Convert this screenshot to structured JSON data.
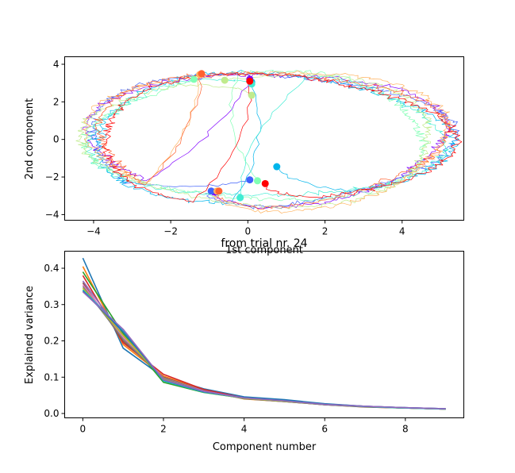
{
  "chart_data": [
    {
      "type": "line",
      "xlabel": "1st component",
      "ylabel": "2nd component",
      "xlim": [
        -4.75,
        5.6
      ],
      "ylim": [
        -4.3,
        4.4
      ],
      "xticks": [
        -4,
        -2,
        0,
        2,
        4
      ],
      "yticks": [
        -4,
        -2,
        0,
        2,
        4
      ],
      "grid": false,
      "description_of_traces": "noisy closed loops, one per trial",
      "series": [
        {
          "color": "#8000ff",
          "loop": {
            "cx": 0.5,
            "cy": 0.1,
            "rx": 4.6,
            "ry": 3.5
          },
          "start": [
            -0.85,
            -2.8
          ],
          "end": [
            0.05,
            3.2
          ]
        },
        {
          "color": "#4062fa",
          "loop": {
            "cx": 0.45,
            "cy": 0.05,
            "rx": 4.7,
            "ry": 3.5
          },
          "start": [
            -0.95,
            -2.75
          ],
          "end": [
            0.05,
            -2.15
          ]
        },
        {
          "color": "#00b5eb",
          "loop": {
            "cx": 0.5,
            "cy": 0.0,
            "rx": 4.6,
            "ry": 3.45
          },
          "start": [
            0.75,
            -1.45
          ],
          "end": [
            0.1,
            3.05
          ]
        },
        {
          "color": "#40ecd4",
          "loop": {
            "cx": 0.45,
            "cy": 0.15,
            "rx": 4.55,
            "ry": 3.3
          },
          "start": [
            0.1,
            2.95
          ],
          "end": [
            -0.2,
            -3.1
          ]
        },
        {
          "color": "#80ffb4",
          "loop": {
            "cx": 0.35,
            "cy": 0.1,
            "rx": 4.35,
            "ry": 3.4
          },
          "start": [
            -1.4,
            3.2
          ],
          "end": [
            0.25,
            -2.2
          ]
        },
        {
          "color": "#c0eb8d",
          "loop": {
            "cx": 0.4,
            "cy": 0.0,
            "rx": 4.5,
            "ry": 3.5
          },
          "start": [
            0.1,
            2.35
          ],
          "end": [
            -0.6,
            3.15
          ]
        },
        {
          "color": "#ffb360",
          "loop": {
            "cx": 0.55,
            "cy": 0.05,
            "rx": 4.65,
            "ry": 3.7
          },
          "start": [
            -0.8,
            -2.75
          ],
          "end": [
            -1.25,
            3.45
          ]
        },
        {
          "color": "#ff6230",
          "loop": {
            "cx": 0.5,
            "cy": 0.1,
            "rx": 4.5,
            "ry": 3.55
          },
          "start": [
            -0.75,
            -2.75
          ],
          "end": [
            -1.2,
            3.5
          ]
        },
        {
          "color": "#ff0000",
          "loop": {
            "cx": 0.6,
            "cy": 0.0,
            "rx": 4.55,
            "ry": 3.45
          },
          "start": [
            0.45,
            -2.35
          ],
          "end": [
            0.05,
            3.1
          ]
        }
      ]
    },
    {
      "type": "line",
      "title": "from trial nr. 24",
      "xlabel": "Component number",
      "ylabel": "Explained variance",
      "xlim": [
        -0.45,
        9.45
      ],
      "ylim": [
        -0.012,
        0.447
      ],
      "xticks": [
        0,
        2,
        4,
        6,
        8
      ],
      "yticks": [
        0.0,
        0.1,
        0.2,
        0.3,
        0.4
      ],
      "grid": false,
      "x": [
        0,
        1,
        2,
        3,
        4,
        5,
        6,
        7,
        8,
        9
      ],
      "series": [
        {
          "color": "#1f77b4",
          "values": [
            0.428,
            0.18,
            0.1,
            0.068,
            0.046,
            0.038,
            0.027,
            0.02,
            0.016,
            0.013
          ]
        },
        {
          "color": "#ff7f0e",
          "values": [
            0.405,
            0.19,
            0.103,
            0.065,
            0.04,
            0.033,
            0.024,
            0.018,
            0.015,
            0.012
          ]
        },
        {
          "color": "#2ca02c",
          "values": [
            0.39,
            0.22,
            0.086,
            0.058,
            0.042,
            0.034,
            0.025,
            0.019,
            0.015,
            0.012
          ]
        },
        {
          "color": "#d62728",
          "values": [
            0.38,
            0.195,
            0.108,
            0.066,
            0.043,
            0.035,
            0.024,
            0.019,
            0.015,
            0.012
          ]
        },
        {
          "color": "#9467bd",
          "values": [
            0.365,
            0.215,
            0.095,
            0.06,
            0.042,
            0.034,
            0.025,
            0.02,
            0.016,
            0.013
          ]
        },
        {
          "color": "#8c564b",
          "values": [
            0.36,
            0.2,
            0.1,
            0.063,
            0.041,
            0.033,
            0.024,
            0.018,
            0.015,
            0.012
          ]
        },
        {
          "color": "#e377c2",
          "values": [
            0.355,
            0.21,
            0.098,
            0.062,
            0.042,
            0.034,
            0.025,
            0.019,
            0.015,
            0.012
          ]
        },
        {
          "color": "#7f7f7f",
          "values": [
            0.35,
            0.205,
            0.097,
            0.061,
            0.041,
            0.033,
            0.024,
            0.019,
            0.015,
            0.012
          ]
        },
        {
          "color": "#bcbd22",
          "values": [
            0.345,
            0.215,
            0.094,
            0.06,
            0.042,
            0.034,
            0.025,
            0.019,
            0.015,
            0.012
          ]
        },
        {
          "color": "#17becf",
          "values": [
            0.34,
            0.23,
            0.09,
            0.059,
            0.043,
            0.035,
            0.025,
            0.019,
            0.015,
            0.012
          ]
        },
        {
          "color": "#1f77b4",
          "values": [
            0.338,
            0.225,
            0.092,
            0.06,
            0.044,
            0.036,
            0.026,
            0.02,
            0.016,
            0.013
          ]
        },
        {
          "color": "#9467bd",
          "values": [
            0.335,
            0.232,
            0.093,
            0.061,
            0.043,
            0.035,
            0.025,
            0.02,
            0.016,
            0.013
          ]
        }
      ]
    }
  ]
}
